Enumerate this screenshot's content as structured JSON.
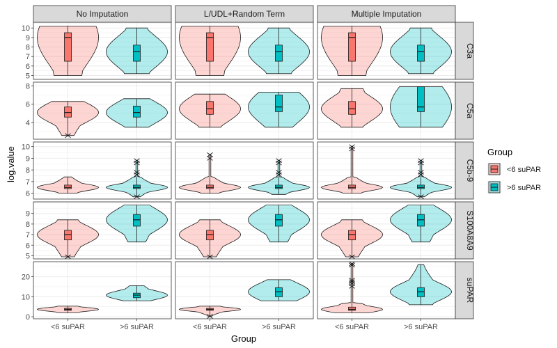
{
  "chart_data": {
    "type": "violin",
    "ylabel": "log.value",
    "xlabel": "Group",
    "categories": [
      "<6 suPAR",
      ">6 suPAR"
    ],
    "facet_columns": [
      "No Imputation",
      "L/UDL+Random Term",
      "Multiple Imputation"
    ],
    "facet_rows": [
      {
        "name": "C3a",
        "ylim": [
          4.6,
          10.6
        ],
        "ticks": [
          5,
          6,
          7,
          8,
          9,
          10
        ]
      },
      {
        "name": "C5a",
        "ylim": [
          2.2,
          8.4
        ],
        "ticks": [
          4,
          6,
          8
        ]
      },
      {
        "name": "C5b-9",
        "ylim": [
          5.5,
          10.4
        ],
        "ticks": [
          6,
          7,
          8,
          9,
          10
        ]
      },
      {
        "name": "S100A8A9",
        "ylim": [
          4.7,
          10.1
        ],
        "ticks": [
          5,
          6,
          7,
          8,
          9
        ]
      },
      {
        "name": "suPAR",
        "ylim": [
          -1,
          27.5
        ],
        "ticks": [
          0,
          10,
          20
        ]
      }
    ],
    "legend": {
      "title": "Group",
      "position": "right",
      "entries": [
        {
          "label": "<6 suPAR",
          "color": "#F8766D"
        },
        {
          "label": ">6 suPAR",
          "color": "#00BFC4"
        }
      ]
    },
    "grid": true,
    "colors": {
      "low": "#F8766D",
      "high": "#00BFC4",
      "strip": "#d9d9d9",
      "grid": "#ebebeb"
    },
    "summaries": [
      [
        [
          {
            "min": 5.0,
            "q1": 6.5,
            "median": 9.0,
            "q3": 9.5,
            "max": 10.2,
            "outliers": []
          },
          {
            "min": 5.2,
            "q1": 6.5,
            "median": 7.5,
            "q3": 8.2,
            "max": 10.0,
            "outliers": []
          }
        ],
        [
          {
            "min": 5.0,
            "q1": 6.5,
            "median": 9.0,
            "q3": 9.5,
            "max": 10.2,
            "outliers": []
          },
          {
            "min": 5.2,
            "q1": 6.5,
            "median": 7.5,
            "q3": 8.2,
            "max": 10.0,
            "outliers": []
          }
        ],
        [
          {
            "min": 5.0,
            "q1": 6.5,
            "median": 9.0,
            "q3": 9.5,
            "max": 10.2,
            "outliers": []
          },
          {
            "min": 5.2,
            "q1": 6.5,
            "median": 7.5,
            "q3": 8.2,
            "max": 10.0,
            "outliers": []
          }
        ]
      ],
      [
        [
          {
            "min": 2.6,
            "q1": 4.6,
            "median": 5.1,
            "q3": 5.7,
            "max": 6.3,
            "outliers": [
              2.6
            ]
          },
          {
            "min": 3.5,
            "q1": 4.6,
            "median": 5.1,
            "q3": 5.8,
            "max": 6.6,
            "outliers": []
          }
        ],
        [
          {
            "min": 3.5,
            "q1": 4.9,
            "median": 5.5,
            "q3": 6.3,
            "max": 7.1,
            "outliers": []
          },
          {
            "min": 3.5,
            "q1": 5.2,
            "median": 5.7,
            "q3": 7.0,
            "max": 7.3,
            "outliers": []
          }
        ],
        [
          {
            "min": 3.5,
            "q1": 4.9,
            "median": 5.5,
            "q3": 6.3,
            "max": 7.7,
            "outliers": []
          },
          {
            "min": 3.5,
            "q1": 5.2,
            "median": 5.7,
            "q3": 7.9,
            "max": 7.9,
            "outliers": []
          }
        ]
      ],
      [
        [
          {
            "min": 6.0,
            "q1": 6.4,
            "median": 6.5,
            "q3": 6.7,
            "max": 7.4,
            "outliers": []
          },
          {
            "min": 5.7,
            "q1": 6.4,
            "median": 6.5,
            "q3": 6.7,
            "max": 7.4,
            "outliers": [
              5.7,
              7.6,
              7.8,
              8.6,
              8.8
            ]
          }
        ],
        [
          {
            "min": 6.0,
            "q1": 6.4,
            "median": 6.5,
            "q3": 6.7,
            "max": 7.4,
            "outliers": [
              9.0,
              9.3
            ]
          },
          {
            "min": 5.9,
            "q1": 6.4,
            "median": 6.5,
            "q3": 6.7,
            "max": 7.4,
            "outliers": [
              7.6,
              7.8,
              8.6,
              8.8
            ]
          }
        ],
        [
          {
            "min": 6.0,
            "q1": 6.4,
            "median": 6.5,
            "q3": 6.7,
            "max": 7.4,
            "outliers": [
              9.8,
              10.0
            ]
          },
          {
            "min": 5.7,
            "q1": 6.4,
            "median": 6.5,
            "q3": 6.7,
            "max": 7.4,
            "outliers": [
              5.7,
              7.6,
              7.8,
              8.6,
              8.8
            ]
          }
        ]
      ],
      [
        [
          {
            "min": 4.9,
            "q1": 6.5,
            "median": 7.0,
            "q3": 7.4,
            "max": 8.4,
            "outliers": [
              4.9
            ]
          },
          {
            "min": 6.3,
            "q1": 7.8,
            "median": 8.4,
            "q3": 8.9,
            "max": 9.8,
            "outliers": []
          }
        ],
        [
          {
            "min": 4.9,
            "q1": 6.5,
            "median": 7.0,
            "q3": 7.4,
            "max": 8.4,
            "outliers": [
              4.9
            ]
          },
          {
            "min": 6.3,
            "q1": 7.8,
            "median": 8.4,
            "q3": 8.9,
            "max": 9.8,
            "outliers": []
          }
        ],
        [
          {
            "min": 4.9,
            "q1": 6.5,
            "median": 7.0,
            "q3": 7.4,
            "max": 8.4,
            "outliers": [
              4.9
            ]
          },
          {
            "min": 6.3,
            "q1": 7.8,
            "median": 8.4,
            "q3": 8.9,
            "max": 9.8,
            "outliers": []
          }
        ]
      ],
      [
        [
          {
            "min": 2.0,
            "q1": 3.2,
            "median": 3.7,
            "q3": 4.2,
            "max": 5.3,
            "outliers": []
          },
          {
            "min": 8.0,
            "q1": 9.5,
            "median": 10.8,
            "q3": 11.8,
            "max": 15.5,
            "outliers": []
          }
        ],
        [
          {
            "min": 0.2,
            "q1": 3.2,
            "median": 3.7,
            "q3": 4.2,
            "max": 5.3,
            "outliers": [
              0.2
            ]
          },
          {
            "min": 8.0,
            "q1": 10.0,
            "median": 12.5,
            "q3": 14.5,
            "max": 18.5,
            "outliers": []
          }
        ],
        [
          {
            "min": 2.0,
            "q1": 3.2,
            "median": 3.7,
            "q3": 4.8,
            "max": 7.0,
            "outliers": [
              15.2,
              16.5,
              17.5,
              18.3,
              25.8,
              26.5
            ]
          },
          {
            "min": 6.0,
            "q1": 10.0,
            "median": 12.5,
            "q3": 14.5,
            "max": 26.0,
            "outliers": []
          }
        ]
      ]
    ]
  }
}
